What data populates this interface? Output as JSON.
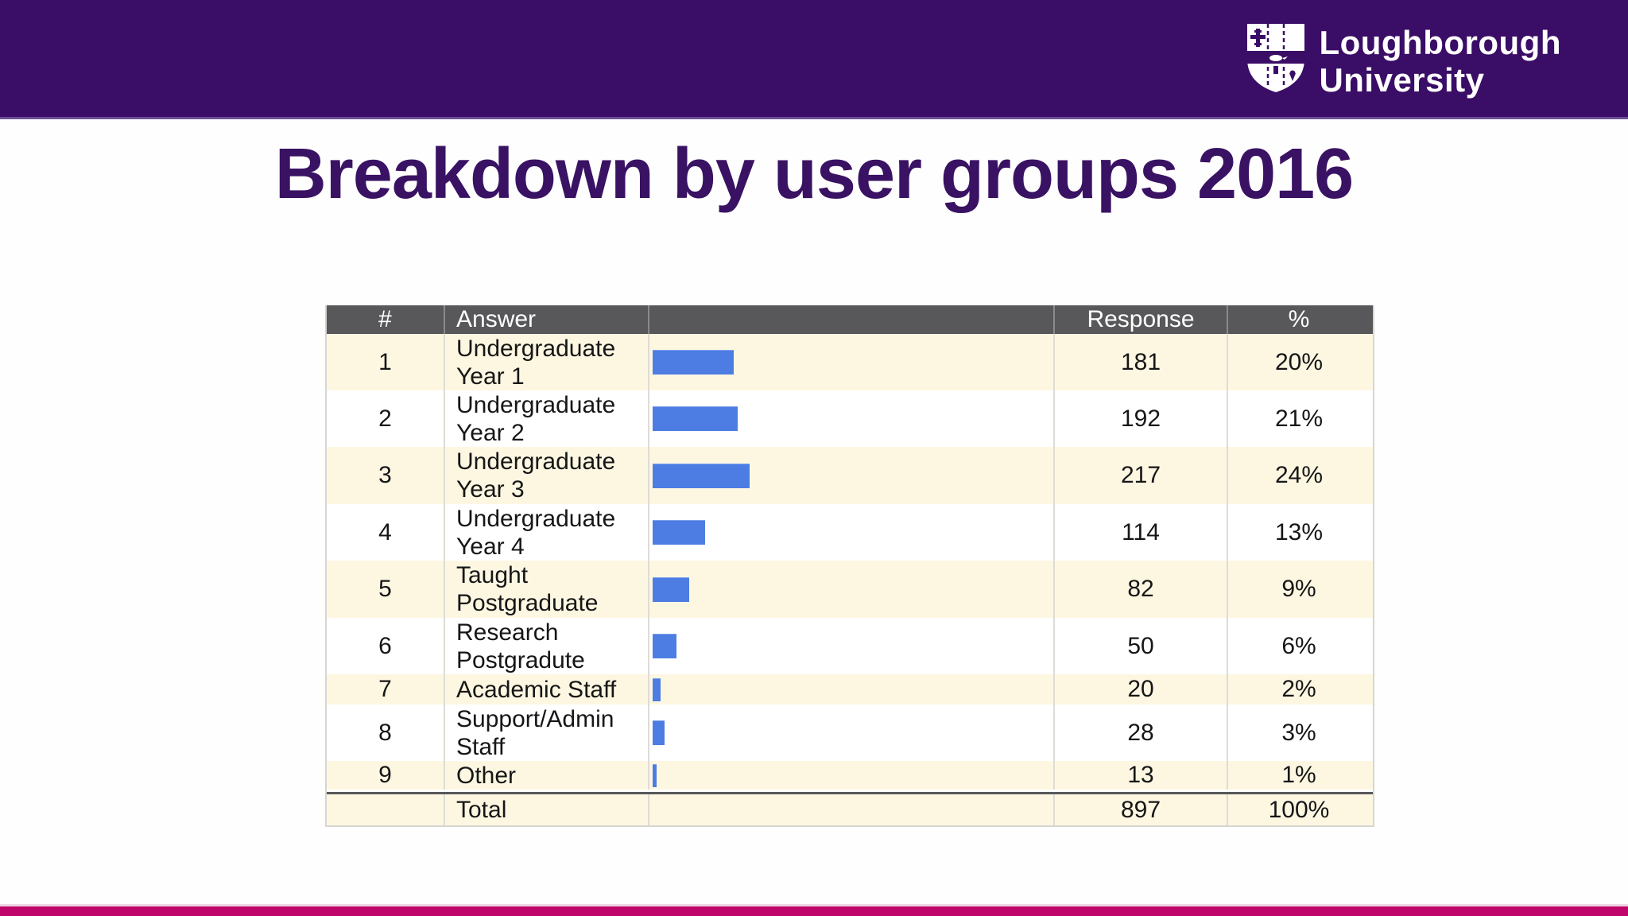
{
  "logo": {
    "line1": "Loughborough",
    "line2": "University"
  },
  "title": "Breakdown by user groups 2016",
  "colors": {
    "banner_purple": "#3a0d66",
    "title_purple": "#3a1263",
    "table_header_gray": "#58585a",
    "row_cream": "#fdf7e2",
    "row_white": "#ffffff",
    "bar_blue": "#4d7de2",
    "accent_magenta": "#c1066b"
  },
  "table": {
    "headers": {
      "num": "#",
      "answer": "Answer",
      "bar": "",
      "response": "Response",
      "pct": "%"
    },
    "rows": [
      {
        "num": "1",
        "answer": "Undergraduate Year 1",
        "label_lines": [
          "Undergraduate",
          "Year 1"
        ],
        "response": "181",
        "pct": "20%",
        "pct_value": 20
      },
      {
        "num": "2",
        "answer": "Undergraduate Year 2",
        "label_lines": [
          "Undergraduate",
          "Year 2"
        ],
        "response": "192",
        "pct": "21%",
        "pct_value": 21
      },
      {
        "num": "3",
        "answer": "Undergraduate Year 3",
        "label_lines": [
          "Undergraduate",
          "Year 3"
        ],
        "response": "217",
        "pct": "24%",
        "pct_value": 24
      },
      {
        "num": "4",
        "answer": "Undergraduate Year 4",
        "label_lines": [
          "Undergraduate",
          "Year 4"
        ],
        "response": "114",
        "pct": "13%",
        "pct_value": 13
      },
      {
        "num": "5",
        "answer": "Taught Postgraduate",
        "label_lines": [
          "Taught",
          "Postgraduate"
        ],
        "response": "82",
        "pct": "9%",
        "pct_value": 9
      },
      {
        "num": "6",
        "answer": "Research Postgradute",
        "label_lines": [
          "Research",
          "Postgradute"
        ],
        "response": "50",
        "pct": "6%",
        "pct_value": 6
      },
      {
        "num": "7",
        "answer": "Academic Staff",
        "label_lines": [
          "Academic Staff"
        ],
        "response": "20",
        "pct": "2%",
        "pct_value": 2
      },
      {
        "num": "8",
        "answer": "Support/Admin Staff",
        "label_lines": [
          "Support/Admin",
          "Staff"
        ],
        "response": "28",
        "pct": "3%",
        "pct_value": 3
      },
      {
        "num": "9",
        "answer": "Other",
        "label_lines": [
          "Other"
        ],
        "response": "13",
        "pct": "1%",
        "pct_value": 1
      }
    ],
    "total": {
      "label": "Total",
      "response": "897",
      "pct": "100%"
    }
  },
  "chart_data": {
    "type": "bar",
    "orientation": "horizontal",
    "title": "Breakdown by user groups 2016",
    "categories": [
      "Undergraduate Year 1",
      "Undergraduate Year 2",
      "Undergraduate Year 3",
      "Undergraduate Year 4",
      "Taught Postgraduate",
      "Research Postgradute",
      "Academic Staff",
      "Support/Admin Staff",
      "Other"
    ],
    "series": [
      {
        "name": "Response",
        "values": [
          181,
          192,
          217,
          114,
          82,
          50,
          20,
          28,
          13
        ]
      },
      {
        "name": "%",
        "values": [
          20,
          21,
          24,
          13,
          9,
          6,
          2,
          3,
          1
        ]
      }
    ],
    "total": {
      "label": "Total",
      "response": 897,
      "pct": 100
    },
    "xlabel": "",
    "ylabel": "",
    "xlim": [
      0,
      100
    ],
    "grid": false,
    "legend_position": "none",
    "bar_color": "#4d7de2"
  }
}
